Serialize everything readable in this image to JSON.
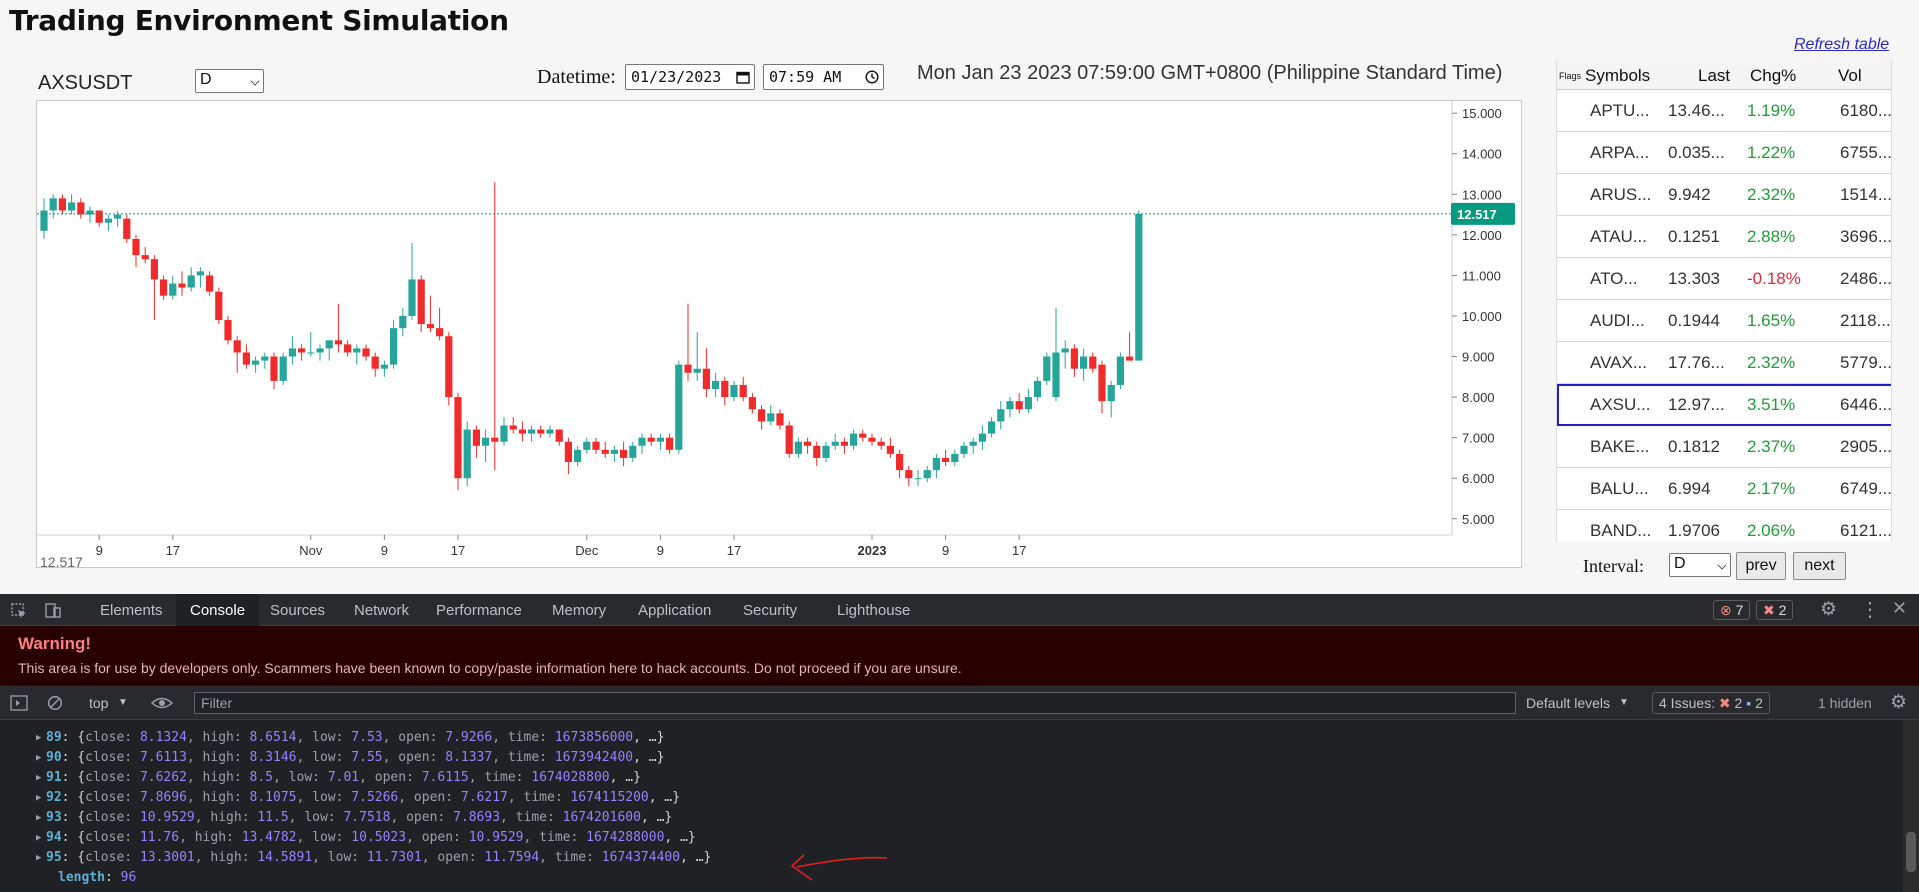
{
  "page": {
    "title": "Trading Environment Simulation",
    "symbol": "AXSUSDT",
    "resolution_select": "D",
    "datetime_label": "Datetime:",
    "date_value": "01/23/2023",
    "time_value": "07:59 AM",
    "current_time_text": "Mon Jan 23 2023 07:59:00 GMT+0800 (Philippine Standard Time)",
    "bottom_overlay_text": "12.517",
    "refresh_label": "Refresh table",
    "interval_label": "Interval:",
    "interval_value": "D",
    "prev_label": "prev",
    "next_label": "next",
    "colors": {
      "up": "#26a69a",
      "down": "#ef2b2b",
      "selected_border": "#2020c8",
      "price_tag": "#089981"
    }
  },
  "table": {
    "headers": {
      "flags": "Flags",
      "symbols": "Symbols",
      "last": "Last",
      "chg": "Chg%",
      "vol": "Vol"
    },
    "rows": [
      {
        "symbol": "APTU...",
        "last": "13.46...",
        "chg": "1.19%",
        "vol": "6180...",
        "dir": "up"
      },
      {
        "symbol": "ARPA...",
        "last": "0.035...",
        "chg": "1.22%",
        "vol": "6755...",
        "dir": "up"
      },
      {
        "symbol": "ARUS...",
        "last": "9.942",
        "chg": "2.32%",
        "vol": "1514...",
        "dir": "up"
      },
      {
        "symbol": "ATAU...",
        "last": "0.1251",
        "chg": "2.88%",
        "vol": "3696...",
        "dir": "up"
      },
      {
        "symbol": "ATO...",
        "last": "13.303",
        "chg": "-0.18%",
        "vol": "2486...",
        "dir": "down"
      },
      {
        "symbol": "AUDI...",
        "last": "0.1944",
        "chg": "1.65%",
        "vol": "2118...",
        "dir": "up"
      },
      {
        "symbol": "AVAX...",
        "last": "17.76...",
        "chg": "2.32%",
        "vol": "5779...",
        "dir": "up"
      },
      {
        "symbol": "AXSU...",
        "last": "12.97...",
        "chg": "3.51%",
        "vol": "6446...",
        "dir": "up",
        "selected": true
      },
      {
        "symbol": "BAKE...",
        "last": "0.1812",
        "chg": "2.37%",
        "vol": "2905...",
        "dir": "up"
      },
      {
        "symbol": "BALU...",
        "last": "6.994",
        "chg": "2.17%",
        "vol": "6749...",
        "dir": "up"
      },
      {
        "symbol": "BAND...",
        "last": "1.9706",
        "chg": "2.06%",
        "vol": "6121...",
        "dir": "up"
      }
    ]
  },
  "chart_data": {
    "type": "candlestick",
    "last_price": 12.517,
    "last_price_label": "12.517",
    "ylim": [
      4.6,
      15.3
    ],
    "yticks": [
      "15.000",
      "14.000",
      "13.000",
      "12.000",
      "11.000",
      "10.000",
      "9.000",
      "8.000",
      "7.000",
      "6.000",
      "5.000"
    ],
    "ytick_values": [
      15,
      14,
      13,
      12,
      11,
      10,
      9,
      8,
      7,
      6,
      5
    ],
    "xticks": [
      {
        "label": "9",
        "i": 6,
        "bold": false
      },
      {
        "label": "17",
        "i": 14,
        "bold": false
      },
      {
        "label": "Nov",
        "i": 29,
        "bold": false
      },
      {
        "label": "9",
        "i": 37,
        "bold": false
      },
      {
        "label": "17",
        "i": 45,
        "bold": false
      },
      {
        "label": "Dec",
        "i": 59,
        "bold": false
      },
      {
        "label": "9",
        "i": 67,
        "bold": false
      },
      {
        "label": "17",
        "i": 75,
        "bold": false
      },
      {
        "label": "2023",
        "i": 90,
        "bold": true
      },
      {
        "label": "9",
        "i": 98,
        "bold": false
      },
      {
        "label": "17",
        "i": 106,
        "bold": false
      }
    ],
    "candles": [
      {
        "o": 12.1,
        "h": 12.9,
        "l": 11.9,
        "c": 12.6
      },
      {
        "o": 12.6,
        "h": 13.0,
        "l": 12.4,
        "c": 12.9
      },
      {
        "o": 12.9,
        "h": 13.0,
        "l": 12.5,
        "c": 12.6
      },
      {
        "o": 12.6,
        "h": 13.0,
        "l": 12.5,
        "c": 12.8
      },
      {
        "o": 12.8,
        "h": 12.9,
        "l": 12.4,
        "c": 12.5
      },
      {
        "o": 12.5,
        "h": 12.7,
        "l": 12.3,
        "c": 12.6
      },
      {
        "o": 12.6,
        "h": 12.6,
        "l": 12.2,
        "c": 12.3
      },
      {
        "o": 12.3,
        "h": 12.5,
        "l": 12.1,
        "c": 12.4
      },
      {
        "o": 12.4,
        "h": 12.6,
        "l": 12.2,
        "c": 12.5
      },
      {
        "o": 12.4,
        "h": 12.5,
        "l": 11.8,
        "c": 11.9
      },
      {
        "o": 11.9,
        "h": 12.0,
        "l": 11.2,
        "c": 11.5
      },
      {
        "o": 11.5,
        "h": 11.7,
        "l": 11.3,
        "c": 11.4
      },
      {
        "o": 11.4,
        "h": 11.5,
        "l": 9.9,
        "c": 10.9
      },
      {
        "o": 10.9,
        "h": 11.0,
        "l": 10.4,
        "c": 10.5
      },
      {
        "o": 10.5,
        "h": 11.0,
        "l": 10.4,
        "c": 10.8
      },
      {
        "o": 10.8,
        "h": 11.1,
        "l": 10.5,
        "c": 10.7
      },
      {
        "o": 10.7,
        "h": 11.2,
        "l": 10.6,
        "c": 11.0
      },
      {
        "o": 11.0,
        "h": 11.2,
        "l": 10.7,
        "c": 11.1
      },
      {
        "o": 11.0,
        "h": 11.1,
        "l": 10.5,
        "c": 10.6
      },
      {
        "o": 10.6,
        "h": 10.7,
        "l": 9.8,
        "c": 9.9
      },
      {
        "o": 9.9,
        "h": 10.0,
        "l": 9.3,
        "c": 9.4
      },
      {
        "o": 9.4,
        "h": 9.5,
        "l": 8.6,
        "c": 9.1
      },
      {
        "o": 9.1,
        "h": 9.3,
        "l": 8.7,
        "c": 8.8
      },
      {
        "o": 8.8,
        "h": 9.0,
        "l": 8.6,
        "c": 8.9
      },
      {
        "o": 8.9,
        "h": 9.1,
        "l": 8.7,
        "c": 9.0
      },
      {
        "o": 9.0,
        "h": 9.1,
        "l": 8.2,
        "c": 8.4
      },
      {
        "o": 8.4,
        "h": 9.1,
        "l": 8.3,
        "c": 9.0
      },
      {
        "o": 9.0,
        "h": 9.5,
        "l": 8.8,
        "c": 9.2
      },
      {
        "o": 9.2,
        "h": 9.3,
        "l": 8.9,
        "c": 9.1
      },
      {
        "o": 9.1,
        "h": 9.6,
        "l": 9.0,
        "c": 9.1
      },
      {
        "o": 9.1,
        "h": 9.3,
        "l": 8.9,
        "c": 9.2
      },
      {
        "o": 9.2,
        "h": 9.3,
        "l": 8.9,
        "c": 9.4
      },
      {
        "o": 9.4,
        "h": 10.3,
        "l": 9.1,
        "c": 9.3
      },
      {
        "o": 9.3,
        "h": 9.4,
        "l": 9.0,
        "c": 9.1
      },
      {
        "o": 9.1,
        "h": 9.3,
        "l": 8.8,
        "c": 9.2
      },
      {
        "o": 9.2,
        "h": 9.3,
        "l": 8.9,
        "c": 9.0
      },
      {
        "o": 9.0,
        "h": 9.1,
        "l": 8.5,
        "c": 8.7
      },
      {
        "o": 8.7,
        "h": 8.9,
        "l": 8.5,
        "c": 8.8
      },
      {
        "o": 8.8,
        "h": 9.9,
        "l": 8.7,
        "c": 9.7
      },
      {
        "o": 9.7,
        "h": 10.2,
        "l": 9.5,
        "c": 10.0
      },
      {
        "o": 10.0,
        "h": 11.8,
        "l": 9.9,
        "c": 10.9
      },
      {
        "o": 10.9,
        "h": 11.0,
        "l": 9.6,
        "c": 9.8
      },
      {
        "o": 9.8,
        "h": 10.5,
        "l": 9.6,
        "c": 9.7
      },
      {
        "o": 9.7,
        "h": 10.2,
        "l": 9.4,
        "c": 9.5
      },
      {
        "o": 9.5,
        "h": 9.6,
        "l": 7.8,
        "c": 8.0
      },
      {
        "o": 8.0,
        "h": 8.1,
        "l": 5.7,
        "c": 6.0
      },
      {
        "o": 6.0,
        "h": 7.4,
        "l": 5.8,
        "c": 7.2
      },
      {
        "o": 7.2,
        "h": 7.3,
        "l": 6.5,
        "c": 6.8
      },
      {
        "o": 6.8,
        "h": 7.2,
        "l": 6.4,
        "c": 7.0
      },
      {
        "o": 7.0,
        "h": 13.3,
        "l": 6.2,
        "c": 6.9
      },
      {
        "o": 6.9,
        "h": 7.5,
        "l": 6.8,
        "c": 7.3
      },
      {
        "o": 7.3,
        "h": 7.5,
        "l": 7.1,
        "c": 7.2
      },
      {
        "o": 7.2,
        "h": 7.4,
        "l": 6.9,
        "c": 7.1
      },
      {
        "o": 7.1,
        "h": 7.3,
        "l": 6.9,
        "c": 7.2
      },
      {
        "o": 7.2,
        "h": 7.3,
        "l": 7.0,
        "c": 7.1
      },
      {
        "o": 7.1,
        "h": 7.3,
        "l": 7.0,
        "c": 7.2
      },
      {
        "o": 7.2,
        "h": 7.2,
        "l": 6.8,
        "c": 6.9
      },
      {
        "o": 6.9,
        "h": 7.0,
        "l": 6.1,
        "c": 6.4
      },
      {
        "o": 6.4,
        "h": 6.8,
        "l": 6.3,
        "c": 6.7
      },
      {
        "o": 6.7,
        "h": 7.0,
        "l": 6.6,
        "c": 6.9
      },
      {
        "o": 6.9,
        "h": 7.0,
        "l": 6.6,
        "c": 6.7
      },
      {
        "o": 6.7,
        "h": 6.9,
        "l": 6.5,
        "c": 6.6
      },
      {
        "o": 6.6,
        "h": 6.8,
        "l": 6.4,
        "c": 6.7
      },
      {
        "o": 6.7,
        "h": 6.9,
        "l": 6.3,
        "c": 6.5
      },
      {
        "o": 6.5,
        "h": 6.9,
        "l": 6.4,
        "c": 6.8
      },
      {
        "o": 6.8,
        "h": 7.1,
        "l": 6.6,
        "c": 7.0
      },
      {
        "o": 7.0,
        "h": 7.1,
        "l": 6.8,
        "c": 6.9
      },
      {
        "o": 6.9,
        "h": 7.1,
        "l": 6.7,
        "c": 7.0
      },
      {
        "o": 7.0,
        "h": 7.1,
        "l": 6.6,
        "c": 6.7
      },
      {
        "o": 6.7,
        "h": 8.9,
        "l": 6.6,
        "c": 8.8
      },
      {
        "o": 8.8,
        "h": 10.3,
        "l": 8.4,
        "c": 8.6
      },
      {
        "o": 8.6,
        "h": 9.6,
        "l": 8.4,
        "c": 8.7
      },
      {
        "o": 8.7,
        "h": 9.2,
        "l": 8.0,
        "c": 8.2
      },
      {
        "o": 8.2,
        "h": 8.6,
        "l": 8.0,
        "c": 8.4
      },
      {
        "o": 8.4,
        "h": 8.5,
        "l": 7.8,
        "c": 8.0
      },
      {
        "o": 8.0,
        "h": 8.4,
        "l": 7.9,
        "c": 8.3
      },
      {
        "o": 8.3,
        "h": 8.5,
        "l": 7.9,
        "c": 8.0
      },
      {
        "o": 8.0,
        "h": 8.1,
        "l": 7.6,
        "c": 7.7
      },
      {
        "o": 7.7,
        "h": 7.8,
        "l": 7.2,
        "c": 7.4
      },
      {
        "o": 7.4,
        "h": 7.8,
        "l": 7.3,
        "c": 7.6
      },
      {
        "o": 7.6,
        "h": 7.7,
        "l": 7.2,
        "c": 7.3
      },
      {
        "o": 7.3,
        "h": 7.4,
        "l": 6.5,
        "c": 6.6
      },
      {
        "o": 6.6,
        "h": 7.0,
        "l": 6.5,
        "c": 6.9
      },
      {
        "o": 6.9,
        "h": 7.0,
        "l": 6.6,
        "c": 6.8
      },
      {
        "o": 6.8,
        "h": 6.9,
        "l": 6.3,
        "c": 6.5
      },
      {
        "o": 6.5,
        "h": 6.9,
        "l": 6.4,
        "c": 6.8
      },
      {
        "o": 6.8,
        "h": 7.1,
        "l": 6.7,
        "c": 6.9
      },
      {
        "o": 6.9,
        "h": 7.0,
        "l": 6.6,
        "c": 6.8
      },
      {
        "o": 6.8,
        "h": 7.2,
        "l": 6.7,
        "c": 7.1
      },
      {
        "o": 7.1,
        "h": 7.2,
        "l": 6.9,
        "c": 7.0
      },
      {
        "o": 7.0,
        "h": 7.1,
        "l": 6.8,
        "c": 6.9
      },
      {
        "o": 6.9,
        "h": 7.0,
        "l": 6.7,
        "c": 6.8
      },
      {
        "o": 6.8,
        "h": 7.0,
        "l": 6.5,
        "c": 6.6
      },
      {
        "o": 6.6,
        "h": 6.7,
        "l": 6.0,
        "c": 6.2
      },
      {
        "o": 6.2,
        "h": 6.3,
        "l": 5.8,
        "c": 6.0
      },
      {
        "o": 6.0,
        "h": 6.2,
        "l": 5.8,
        "c": 6.0
      },
      {
        "o": 6.0,
        "h": 6.3,
        "l": 5.9,
        "c": 6.2
      },
      {
        "o": 6.2,
        "h": 6.6,
        "l": 6.0,
        "c": 6.5
      },
      {
        "o": 6.5,
        "h": 6.7,
        "l": 6.3,
        "c": 6.4
      },
      {
        "o": 6.4,
        "h": 6.7,
        "l": 6.3,
        "c": 6.6
      },
      {
        "o": 6.6,
        "h": 6.9,
        "l": 6.5,
        "c": 6.8
      },
      {
        "o": 6.8,
        "h": 7.0,
        "l": 6.6,
        "c": 6.9
      },
      {
        "o": 6.9,
        "h": 7.3,
        "l": 6.7,
        "c": 7.1
      },
      {
        "o": 7.1,
        "h": 7.5,
        "l": 7.0,
        "c": 7.4
      },
      {
        "o": 7.4,
        "h": 7.9,
        "l": 7.2,
        "c": 7.7
      },
      {
        "o": 7.7,
        "h": 8.0,
        "l": 7.5,
        "c": 7.9
      },
      {
        "o": 7.9,
        "h": 8.1,
        "l": 7.6,
        "c": 7.7
      },
      {
        "o": 7.7,
        "h": 8.2,
        "l": 7.6,
        "c": 8.0
      },
      {
        "o": 8.0,
        "h": 8.5,
        "l": 7.9,
        "c": 8.4
      },
      {
        "o": 8.4,
        "h": 9.1,
        "l": 8.3,
        "c": 9.0
      },
      {
        "o": 8.0,
        "h": 10.2,
        "l": 7.9,
        "c": 9.1
      },
      {
        "o": 9.1,
        "h": 9.4,
        "l": 8.7,
        "c": 9.2
      },
      {
        "o": 9.2,
        "h": 9.3,
        "l": 8.5,
        "c": 8.7
      },
      {
        "o": 8.7,
        "h": 9.2,
        "l": 8.4,
        "c": 9.0
      },
      {
        "o": 9.0,
        "h": 9.1,
        "l": 8.6,
        "c": 8.7
      },
      {
        "o": 8.8,
        "h": 8.9,
        "l": 7.6,
        "c": 7.9
      },
      {
        "o": 7.9,
        "h": 8.4,
        "l": 7.5,
        "c": 8.3
      },
      {
        "o": 8.3,
        "h": 9.1,
        "l": 8.2,
        "c": 9.0
      },
      {
        "o": 9.0,
        "h": 9.6,
        "l": 8.9,
        "c": 8.9
      },
      {
        "o": 8.9,
        "h": 12.6,
        "l": 8.9,
        "c": 12.517
      }
    ]
  },
  "devtools": {
    "tabs": [
      "Elements",
      "Console",
      "Sources",
      "Network",
      "Performance",
      "Memory",
      "Application",
      "Security",
      "Lighthouse"
    ],
    "active_tab": "Console",
    "error_count": "7",
    "issue_count": "2",
    "warning_title": "Warning!",
    "warning_text": "This area is for use by developers only. Scammers have been known to copy/paste information here to hack accounts. Do not proceed if you are unsure.",
    "context": "top",
    "filter_placeholder": "Filter",
    "levels": "Default levels",
    "issues_label": "4 Issues:",
    "issues_err": "2",
    "issues_info": "2",
    "hidden": "1 hidden",
    "log_lines": [
      {
        "idx": "89",
        "close": "8.1324",
        "high": "8.6514",
        "low": "7.53",
        "open": "7.9266",
        "time": "1673856000"
      },
      {
        "idx": "90",
        "close": "7.6113",
        "high": "8.3146",
        "low": "7.55",
        "open": "8.1337",
        "time": "1673942400"
      },
      {
        "idx": "91",
        "close": "7.6262",
        "high": "8.5",
        "low": "7.01",
        "open": "7.6115",
        "time": "1674028800"
      },
      {
        "idx": "92",
        "close": "7.8696",
        "high": "8.1075",
        "low": "7.5266",
        "open": "7.6217",
        "time": "1674115200"
      },
      {
        "idx": "93",
        "close": "10.9529",
        "high": "11.5",
        "low": "7.7518",
        "open": "7.8693",
        "time": "1674201600"
      },
      {
        "idx": "94",
        "close": "11.76",
        "high": "13.4782",
        "low": "10.5023",
        "open": "10.9529",
        "time": "1674288000"
      },
      {
        "idx": "95",
        "close": "13.3001",
        "high": "14.5891",
        "low": "11.7301",
        "open": "11.7594",
        "time": "1674374400"
      }
    ],
    "length_key": "length",
    "length_value": "96"
  }
}
